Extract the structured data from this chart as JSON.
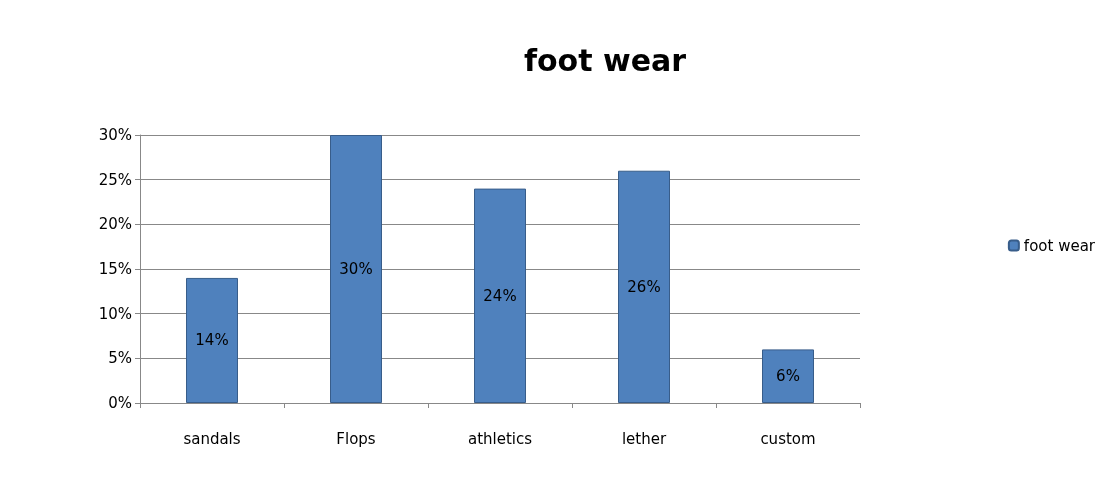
{
  "chart_data": {
    "type": "bar",
    "title": "foot wear",
    "categories": [
      "sandals",
      "Flops",
      "athletics",
      "lether",
      "custom"
    ],
    "series": [
      {
        "name": "foot wear",
        "color": "#4f81bd",
        "values": [
          14,
          30,
          24,
          26,
          6
        ],
        "value_labels": [
          "14%",
          "30%",
          "24%",
          "26%",
          "6%"
        ]
      }
    ],
    "ylim": [
      0,
      30
    ],
    "yticks": [
      {
        "value": 0,
        "label": "0%"
      },
      {
        "value": 5,
        "label": "5%"
      },
      {
        "value": 10,
        "label": "10%"
      },
      {
        "value": 15,
        "label": "15%"
      },
      {
        "value": 20,
        "label": "20%"
      },
      {
        "value": 25,
        "label": "25%"
      },
      {
        "value": 30,
        "label": "30%"
      }
    ],
    "grid": "y",
    "legend": "right"
  }
}
